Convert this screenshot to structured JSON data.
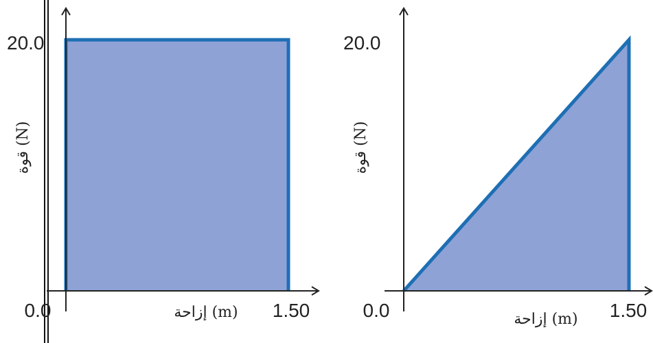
{
  "chart_data": [
    {
      "type": "area",
      "x": [
        0.0,
        0.0,
        1.5,
        1.5
      ],
      "y": [
        0.0,
        20.0,
        20.0,
        0.0
      ],
      "xlabel": "(m) إزاحة",
      "ylabel": "(N) قوة",
      "xlim": [
        0.0,
        1.5
      ],
      "ylim": [
        0.0,
        20.0
      ],
      "x_ticks": [
        "0.0",
        "1.50"
      ],
      "y_ticks": [
        "0.0",
        "20.0"
      ],
      "grid": false,
      "fill_color": "#8ea2d6",
      "line_color": "#1e6fb4"
    },
    {
      "type": "area",
      "x": [
        0.0,
        1.5,
        1.5
      ],
      "y": [
        0.0,
        20.0,
        0.0
      ],
      "xlabel": "(m) إزاحة",
      "ylabel": "(N) قوة",
      "xlim": [
        0.0,
        1.5
      ],
      "ylim": [
        0.0,
        20.0
      ],
      "x_ticks": [
        "0.0",
        "1.50"
      ],
      "y_ticks": [
        "0.0",
        "20.0"
      ],
      "grid": false,
      "fill_color": "#8ea2d6",
      "line_color": "#1e6fb4"
    }
  ]
}
